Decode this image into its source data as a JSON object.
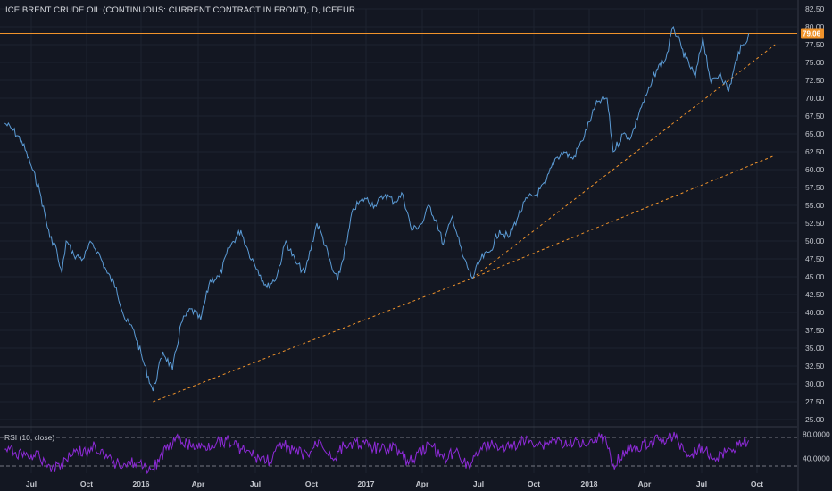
{
  "title": "ICE BRENT CRUDE OIL (CONTINUOUS: CURRENT CONTRACT IN FRONT), D, ICEEUR",
  "price_tag": "79.06",
  "rsi_label": "RSI (10, close)",
  "colors": {
    "background": "#131722",
    "price_line": "#5b9bd5",
    "rsi_line": "#8e2ad8",
    "trend": "#f0932b",
    "grid": "#1e2330",
    "tag": "#f0932b"
  },
  "chart_data": [
    {
      "type": "line",
      "title": "ICE BRENT CRUDE OIL (CONTINUOUS: CURRENT CONTRACT IN FRONT), D, ICEEUR",
      "x_tick_labels": [
        "Jul",
        "Oct",
        "2016",
        "Apr",
        "Jul",
        "Oct",
        "2017",
        "Apr",
        "Jul",
        "Oct",
        "2018",
        "Apr",
        "Jul",
        "Oct"
      ],
      "x_tick_dates": [
        "2015-07-01",
        "2015-10-01",
        "2016-01-01",
        "2016-04-01",
        "2016-07-01",
        "2016-10-01",
        "2017-01-01",
        "2017-04-01",
        "2017-07-01",
        "2017-10-01",
        "2018-01-01",
        "2018-04-01",
        "2018-07-01",
        "2018-10-01"
      ],
      "y_tick_labels": [
        "82.50",
        "80.00",
        "77.50",
        "75.00",
        "72.50",
        "70.00",
        "67.50",
        "65.00",
        "62.50",
        "60.00",
        "57.50",
        "55.00",
        "52.50",
        "50.00",
        "47.50",
        "45.00",
        "42.50",
        "40.00",
        "37.50",
        "35.00",
        "32.50",
        "30.00",
        "27.50",
        "25.00"
      ],
      "ylim": [
        25.0,
        82.5
      ],
      "series": [
        {
          "name": "Brent price",
          "x": [
            "2015-05-18",
            "2015-06-01",
            "2015-06-15",
            "2015-07-01",
            "2015-07-15",
            "2015-08-01",
            "2015-08-10",
            "2015-08-17",
            "2015-08-21",
            "2015-08-28",
            "2015-09-10",
            "2015-09-25",
            "2015-10-09",
            "2015-10-20",
            "2015-11-05",
            "2015-11-20",
            "2015-12-05",
            "2015-12-20",
            "2016-01-05",
            "2016-01-20",
            "2016-02-05",
            "2016-02-20",
            "2016-03-05",
            "2016-03-20",
            "2016-04-05",
            "2016-04-20",
            "2016-05-05",
            "2016-05-20",
            "2016-06-08",
            "2016-06-20",
            "2016-07-05",
            "2016-07-20",
            "2016-08-05",
            "2016-08-20",
            "2016-09-05",
            "2016-09-20",
            "2016-10-10",
            "2016-10-20",
            "2016-11-05",
            "2016-11-14",
            "2016-11-30",
            "2016-12-10",
            "2016-12-30",
            "2017-01-15",
            "2017-02-01",
            "2017-02-15",
            "2017-03-01",
            "2017-03-15",
            "2017-04-01",
            "2017-04-12",
            "2017-04-25",
            "2017-05-05",
            "2017-05-20",
            "2017-06-05",
            "2017-06-21",
            "2017-07-05",
            "2017-07-20",
            "2017-08-05",
            "2017-08-20",
            "2017-09-05",
            "2017-09-20",
            "2017-10-05",
            "2017-10-20",
            "2017-11-05",
            "2017-11-20",
            "2017-12-05",
            "2017-12-20",
            "2018-01-05",
            "2018-01-15",
            "2018-01-30",
            "2018-02-09",
            "2018-02-25",
            "2018-03-10",
            "2018-03-25",
            "2018-04-10",
            "2018-04-20",
            "2018-05-05",
            "2018-05-17",
            "2018-05-30",
            "2018-06-06",
            "2018-06-21",
            "2018-07-03",
            "2018-07-17",
            "2018-08-01",
            "2018-08-15",
            "2018-08-31",
            "2018-09-10",
            "2018-09-17"
          ],
          "y": [
            66.5,
            65.5,
            64.0,
            60.5,
            57.0,
            50.5,
            49.5,
            46.5,
            45.5,
            50.0,
            48.0,
            47.5,
            49.8,
            48.5,
            45.5,
            43.5,
            39.0,
            37.5,
            33.0,
            29.0,
            34.5,
            32.0,
            38.5,
            40.5,
            39.0,
            44.5,
            45.0,
            49.0,
            51.5,
            48.5,
            46.0,
            43.5,
            45.0,
            50.0,
            47.0,
            45.5,
            52.5,
            50.5,
            46.0,
            44.5,
            50.0,
            54.5,
            56.0,
            55.0,
            56.5,
            55.5,
            56.5,
            51.5,
            52.5,
            55.0,
            52.5,
            49.5,
            53.5,
            48.0,
            44.8,
            47.5,
            48.5,
            51.5,
            50.5,
            53.5,
            56.0,
            56.5,
            58.0,
            61.5,
            62.5,
            61.5,
            64.0,
            67.5,
            69.5,
            70.0,
            62.5,
            65.0,
            64.5,
            68.5,
            71.5,
            74.0,
            75.5,
            80.0,
            77.0,
            75.5,
            73.0,
            78.5,
            72.0,
            73.5,
            71.0,
            76.5,
            77.5,
            79.06
          ],
          "color": "#5b9bd5"
        }
      ],
      "trendlines": [
        {
          "from": {
            "x": "2016-01-20",
            "y": 27.5
          },
          "to": {
            "x": "2017-06-21",
            "y": 44.8
          }
        },
        {
          "from": {
            "x": "2017-06-21",
            "y": 44.8
          },
          "to": {
            "x": "2018-10-31",
            "y": 77.5
          }
        },
        {
          "from": {
            "x": "2017-06-21",
            "y": 44.8
          },
          "to": {
            "x": "2018-10-31",
            "y": 62.0
          }
        }
      ],
      "horizontal_line": {
        "y": 79.06,
        "label": "79.06"
      },
      "grid": true
    },
    {
      "type": "line",
      "title": "RSI (10, close)",
      "y_tick_labels": [
        "80.0000",
        "40.0000"
      ],
      "ylim": [
        15,
        90
      ],
      "reference_lines": [
        75,
        27
      ],
      "series": [
        {
          "name": "RSI (10, close)",
          "x": [
            "2015-05-18",
            "2015-06-05",
            "2015-06-25",
            "2015-07-15",
            "2015-08-05",
            "2015-08-20",
            "2015-09-10",
            "2015-09-30",
            "2015-10-15",
            "2015-11-01",
            "2015-11-20",
            "2015-12-10",
            "2016-01-05",
            "2016-01-20",
            "2016-02-10",
            "2016-03-01",
            "2016-03-20",
            "2016-04-10",
            "2016-05-01",
            "2016-05-20",
            "2016-06-10",
            "2016-07-01",
            "2016-07-25",
            "2016-08-15",
            "2016-09-05",
            "2016-09-25",
            "2016-10-15",
            "2016-11-05",
            "2016-11-25",
            "2016-12-15",
            "2017-01-05",
            "2017-01-25",
            "2017-02-15",
            "2017-03-10",
            "2017-03-25",
            "2017-04-15",
            "2017-05-05",
            "2017-05-25",
            "2017-06-15",
            "2017-07-05",
            "2017-07-25",
            "2017-08-15",
            "2017-09-05",
            "2017-09-25",
            "2017-10-15",
            "2017-11-05",
            "2017-11-25",
            "2017-12-15",
            "2018-01-05",
            "2018-01-25",
            "2018-02-09",
            "2018-03-01",
            "2018-03-20",
            "2018-04-10",
            "2018-05-01",
            "2018-05-20",
            "2018-06-10",
            "2018-07-01",
            "2018-07-20",
            "2018-08-10",
            "2018-08-31",
            "2018-09-17"
          ],
          "y": [
            55,
            50,
            45,
            42,
            25,
            30,
            55,
            48,
            62,
            40,
            30,
            35,
            25,
            22,
            55,
            72,
            60,
            58,
            68,
            70,
            55,
            42,
            35,
            65,
            50,
            45,
            70,
            40,
            60,
            68,
            60,
            55,
            62,
            30,
            50,
            62,
            40,
            52,
            28,
            58,
            62,
            55,
            65,
            70,
            62,
            72,
            60,
            68,
            72,
            75,
            30,
            52,
            60,
            68,
            72,
            74,
            45,
            60,
            38,
            50,
            62,
            70
          ],
          "color": "#8e2ad8"
        }
      ]
    }
  ]
}
